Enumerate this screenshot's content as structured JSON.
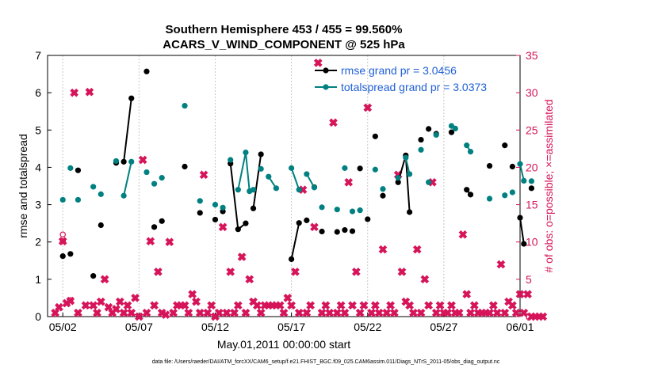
{
  "colors": {
    "rmse": "#000000",
    "totalspread": "#008080",
    "obs": "#d6145a",
    "legend_text": "#1f5fd6",
    "axis": "#000000",
    "grid": "#c8c8c8"
  },
  "chart_data": {
    "type": "line",
    "title": "Southern Hemisphere 453 / 455 = 99.560%",
    "subtitle": "ACARS_V_WIND_COMPONENT @ 525 hPa",
    "xlabel": "May.01,2011 00:00:00 start",
    "ylabel": "rmse and totalspread",
    "y2label": "# of obs: o=possible; ×=assimilated",
    "footnote": "data file: /Users/raeder/DAI/ATM_forcXX/CAM6_setup/f.e21.FHIST_BGC.f09_025.CAM6assim.011/Diags_NTrS_2011-05/obs_diag_output.nc",
    "xlim": [
      0,
      31
    ],
    "ylim": [
      0,
      7
    ],
    "y2lim": [
      0,
      35
    ],
    "xticks": [
      1,
      6,
      11,
      16,
      21,
      26,
      31
    ],
    "xtick_labels": [
      "05/02",
      "05/07",
      "05/12",
      "05/17",
      "05/22",
      "05/27",
      "06/01"
    ],
    "yticks": [
      0,
      1,
      2,
      3,
      4,
      5,
      6,
      7
    ],
    "y2ticks": [
      0,
      5,
      10,
      15,
      20,
      25,
      30,
      35
    ],
    "grid": "vertical",
    "legend_position": "top-right",
    "series": [
      {
        "name": "rmse grand pr = 3.0456",
        "axis": "left",
        "segments": [
          [
            [
              1.0,
              1.62
            ]
          ],
          [
            [
              1.5,
              1.68
            ]
          ],
          [
            [
              2.0,
              3.92
            ]
          ],
          [
            [
              3.0,
              1.09
            ]
          ],
          [
            [
              3.5,
              2.45
            ]
          ],
          [
            [
              4.5,
              4.12
            ]
          ],
          [
            [
              5.0,
              4.15
            ],
            [
              5.5,
              5.85
            ]
          ],
          [
            [
              6.5,
              6.57
            ]
          ],
          [
            [
              7.0,
              2.4
            ]
          ],
          [
            [
              7.5,
              2.56
            ]
          ],
          [
            [
              9.0,
              4.02
            ]
          ],
          [
            [
              10.0,
              2.78
            ]
          ],
          [
            [
              11.0,
              2.6
            ]
          ],
          [
            [
              11.5,
              2.82
            ]
          ],
          [
            [
              12.0,
              4.1
            ],
            [
              12.5,
              2.34
            ],
            [
              13.0,
              2.5
            ]
          ],
          [
            [
              13.5,
              2.9
            ],
            [
              14.0,
              4.35
            ]
          ],
          [
            [
              16.0,
              1.54
            ],
            [
              16.5,
              2.51
            ]
          ],
          [
            [
              17.0,
              2.58
            ]
          ],
          [
            [
              17.5,
              3.47
            ]
          ],
          [
            [
              18.0,
              2.28
            ]
          ],
          [
            [
              19.0,
              2.27
            ]
          ],
          [
            [
              19.5,
              2.32
            ]
          ],
          [
            [
              20.0,
              2.29
            ]
          ],
          [
            [
              20.5,
              3.97
            ]
          ],
          [
            [
              21.0,
              2.61
            ]
          ],
          [
            [
              21.5,
              4.83
            ]
          ],
          [
            [
              22.0,
              3.24
            ]
          ],
          [
            [
              23.0,
              3.6
            ],
            [
              23.5,
              4.32
            ],
            [
              23.75,
              2.8
            ]
          ],
          [
            [
              24.5,
              4.74
            ]
          ],
          [
            [
              25.0,
              5.03
            ]
          ],
          [
            [
              25.5,
              4.9
            ]
          ],
          [
            [
              26.5,
              4.94
            ]
          ],
          [
            [
              27.5,
              3.4
            ],
            [
              27.75,
              3.27
            ]
          ],
          [
            [
              29.0,
              4.04
            ]
          ],
          [
            [
              30.0,
              4.59
            ]
          ],
          [
            [
              30.5,
              4.02
            ]
          ],
          [
            [
              31.0,
              2.65
            ],
            [
              31.25,
              1.95
            ]
          ],
          [
            [
              31.75,
              3.44
            ]
          ]
        ]
      },
      {
        "name": "totalspread grand pr = 3.0373",
        "axis": "left",
        "segments": [
          [
            [
              1.0,
              3.13
            ]
          ],
          [
            [
              1.5,
              3.98
            ]
          ],
          [
            [
              2.0,
              3.13
            ]
          ],
          [
            [
              3.0,
              3.48
            ]
          ],
          [
            [
              3.5,
              3.28
            ]
          ],
          [
            [
              4.5,
              4.17
            ]
          ],
          [
            [
              5.0,
              3.24
            ],
            [
              5.5,
              4.15
            ]
          ],
          [
            [
              6.5,
              3.87
            ]
          ],
          [
            [
              7.0,
              3.56
            ]
          ],
          [
            [
              7.5,
              3.72
            ]
          ],
          [
            [
              9.0,
              5.65
            ]
          ],
          [
            [
              10.0,
              3.1
            ]
          ],
          [
            [
              11.0,
              3.0
            ]
          ],
          [
            [
              11.5,
              2.92
            ]
          ],
          [
            [
              12.0,
              4.2
            ]
          ],
          [
            [
              12.5,
              3.4
            ],
            [
              13.0,
              4.4
            ],
            [
              13.25,
              3.36
            ]
          ],
          [
            [
              13.5,
              3.4
            ]
          ],
          [
            [
              14.0,
              3.96
            ]
          ],
          [
            [
              14.5,
              3.75
            ],
            [
              15.0,
              3.44
            ]
          ],
          [
            [
              16.0,
              3.98
            ],
            [
              16.5,
              3.4
            ]
          ],
          [
            [
              17.0,
              3.82
            ],
            [
              17.5,
              3.46
            ]
          ],
          [
            [
              18.0,
              2.93
            ]
          ],
          [
            [
              19.0,
              2.87
            ]
          ],
          [
            [
              19.5,
              3.98
            ]
          ],
          [
            [
              20.0,
              2.82
            ]
          ],
          [
            [
              20.5,
              2.85
            ]
          ],
          [
            [
              21.5,
              3.94
            ]
          ],
          [
            [
              22.0,
              3.42
            ]
          ],
          [
            [
              23.0,
              3.72
            ]
          ],
          [
            [
              23.5,
              4.26
            ],
            [
              23.75,
              3.82
            ]
          ],
          [
            [
              24.5,
              4.47
            ]
          ],
          [
            [
              25.0,
              3.6
            ]
          ],
          [
            [
              25.5,
              4.87
            ]
          ],
          [
            [
              26.5,
              5.11
            ],
            [
              26.75,
              5.04
            ]
          ],
          [
            [
              27.5,
              4.59
            ],
            [
              27.75,
              4.42
            ]
          ],
          [
            [
              29.0,
              3.16
            ]
          ],
          [
            [
              30.0,
              3.25
            ]
          ],
          [
            [
              30.5,
              3.33
            ]
          ],
          [
            [
              31.0,
              4.09
            ],
            [
              31.25,
              3.64
            ]
          ],
          [
            [
              31.75,
              3.63
            ]
          ]
        ]
      }
    ],
    "obs_possible": [
      [
        1.0,
        10.1
      ],
      [
        1.0,
        11.0
      ],
      [
        1.5,
        2.2
      ]
    ],
    "obs_assimilated": [
      [
        0.5,
        0.5
      ],
      [
        0.75,
        1.25
      ],
      [
        1.0,
        10.1
      ],
      [
        1.25,
        1.8
      ],
      [
        1.5,
        2.1
      ],
      [
        1.75,
        30.0
      ],
      [
        2.0,
        0.5
      ],
      [
        2.5,
        1.5
      ],
      [
        2.75,
        30.1
      ],
      [
        3.0,
        1.5
      ],
      [
        3.25,
        0.5
      ],
      [
        3.5,
        2.0
      ],
      [
        3.75,
        5.0
      ],
      [
        4.0,
        1.25
      ],
      [
        4.25,
        0.5
      ],
      [
        4.5,
        1.0
      ],
      [
        4.75,
        2.0
      ],
      [
        5.0,
        0.5
      ],
      [
        5.25,
        1.5
      ],
      [
        5.5,
        0.5
      ],
      [
        5.75,
        2.5
      ],
      [
        6.0,
        0.0
      ],
      [
        6.25,
        21.0
      ],
      [
        6.5,
        0.5
      ],
      [
        6.75,
        10.1
      ],
      [
        7.0,
        1.5
      ],
      [
        7.25,
        6.0
      ],
      [
        7.5,
        0.5
      ],
      [
        7.75,
        0.25
      ],
      [
        8.0,
        10.0
      ],
      [
        8.25,
        0.5
      ],
      [
        8.5,
        1.5
      ],
      [
        8.75,
        1.5
      ],
      [
        9.0,
        1.5
      ],
      [
        9.25,
        0.5
      ],
      [
        9.5,
        3.0
      ],
      [
        9.75,
        2.0
      ],
      [
        10.0,
        0.5
      ],
      [
        10.25,
        19.0
      ],
      [
        10.5,
        0.5
      ],
      [
        10.75,
        1.5
      ],
      [
        11.0,
        0.0
      ],
      [
        11.25,
        0.5
      ],
      [
        11.5,
        12.0
      ],
      [
        11.75,
        0.5
      ],
      [
        12.0,
        6.0
      ],
      [
        12.25,
        0.5
      ],
      [
        12.5,
        1.5
      ],
      [
        12.75,
        8.0
      ],
      [
        13.0,
        0.5
      ],
      [
        13.25,
        5.0
      ],
      [
        13.5,
        2.0
      ],
      [
        13.75,
        1.5
      ],
      [
        14.0,
        0.5
      ],
      [
        14.25,
        1.5
      ],
      [
        14.5,
        1.5
      ],
      [
        14.75,
        1.5
      ],
      [
        15.0,
        1.5
      ],
      [
        15.25,
        1.5
      ],
      [
        15.5,
        0.5
      ],
      [
        15.75,
        2.5
      ],
      [
        16.0,
        1.5
      ],
      [
        16.25,
        6.0
      ],
      [
        16.5,
        0.5
      ],
      [
        16.75,
        17.0
      ],
      [
        17.0,
        0.5
      ],
      [
        17.25,
        1.5
      ],
      [
        17.5,
        12.0
      ],
      [
        17.75,
        34.0
      ],
      [
        18.0,
        0.5
      ],
      [
        18.25,
        1.5
      ],
      [
        18.5,
        0.5
      ],
      [
        18.75,
        26.0
      ],
      [
        19.0,
        0.5
      ],
      [
        19.25,
        1.5
      ],
      [
        19.5,
        0.5
      ],
      [
        19.75,
        18.0
      ],
      [
        20.0,
        1.5
      ],
      [
        20.25,
        6.0
      ],
      [
        20.5,
        0.5
      ],
      [
        20.75,
        1.5
      ],
      [
        21.0,
        28.0
      ],
      [
        21.25,
        0.5
      ],
      [
        21.5,
        1.5
      ],
      [
        21.75,
        0.5
      ],
      [
        22.0,
        9.0
      ],
      [
        22.25,
        0.5
      ],
      [
        22.5,
        1.5
      ],
      [
        22.75,
        0.5
      ],
      [
        23.0,
        19.0
      ],
      [
        23.25,
        6.0
      ],
      [
        23.5,
        2.0
      ],
      [
        23.75,
        1.5
      ],
      [
        24.0,
        0.5
      ],
      [
        24.25,
        9.0
      ],
      [
        24.5,
        0.5
      ],
      [
        24.75,
        5.0
      ],
      [
        25.0,
        1.5
      ],
      [
        25.25,
        18.0
      ],
      [
        25.5,
        0.5
      ],
      [
        25.75,
        1.5
      ],
      [
        26.0,
        0.5
      ],
      [
        26.25,
        0.5
      ],
      [
        26.5,
        1.5
      ],
      [
        26.75,
        0.5
      ],
      [
        27.0,
        0.5
      ],
      [
        27.25,
        11.0
      ],
      [
        27.5,
        3.0
      ],
      [
        27.75,
        0.5
      ],
      [
        28.0,
        1.5
      ],
      [
        28.25,
        0.5
      ],
      [
        28.5,
        0.5
      ],
      [
        28.75,
        0.5
      ],
      [
        29.0,
        0.5
      ],
      [
        29.25,
        1.5
      ],
      [
        29.5,
        0.5
      ],
      [
        29.75,
        7.0
      ],
      [
        30.0,
        0.5
      ],
      [
        30.25,
        2.0
      ],
      [
        30.5,
        1.5
      ],
      [
        30.75,
        0.5
      ],
      [
        31.0,
        3.0
      ],
      [
        31.25,
        0.5
      ],
      [
        31.5,
        3.0
      ],
      [
        31.75,
        0.0
      ],
      [
        32.0,
        0.0
      ],
      [
        32.25,
        0.0
      ],
      [
        32.5,
        0.0
      ]
    ]
  }
}
